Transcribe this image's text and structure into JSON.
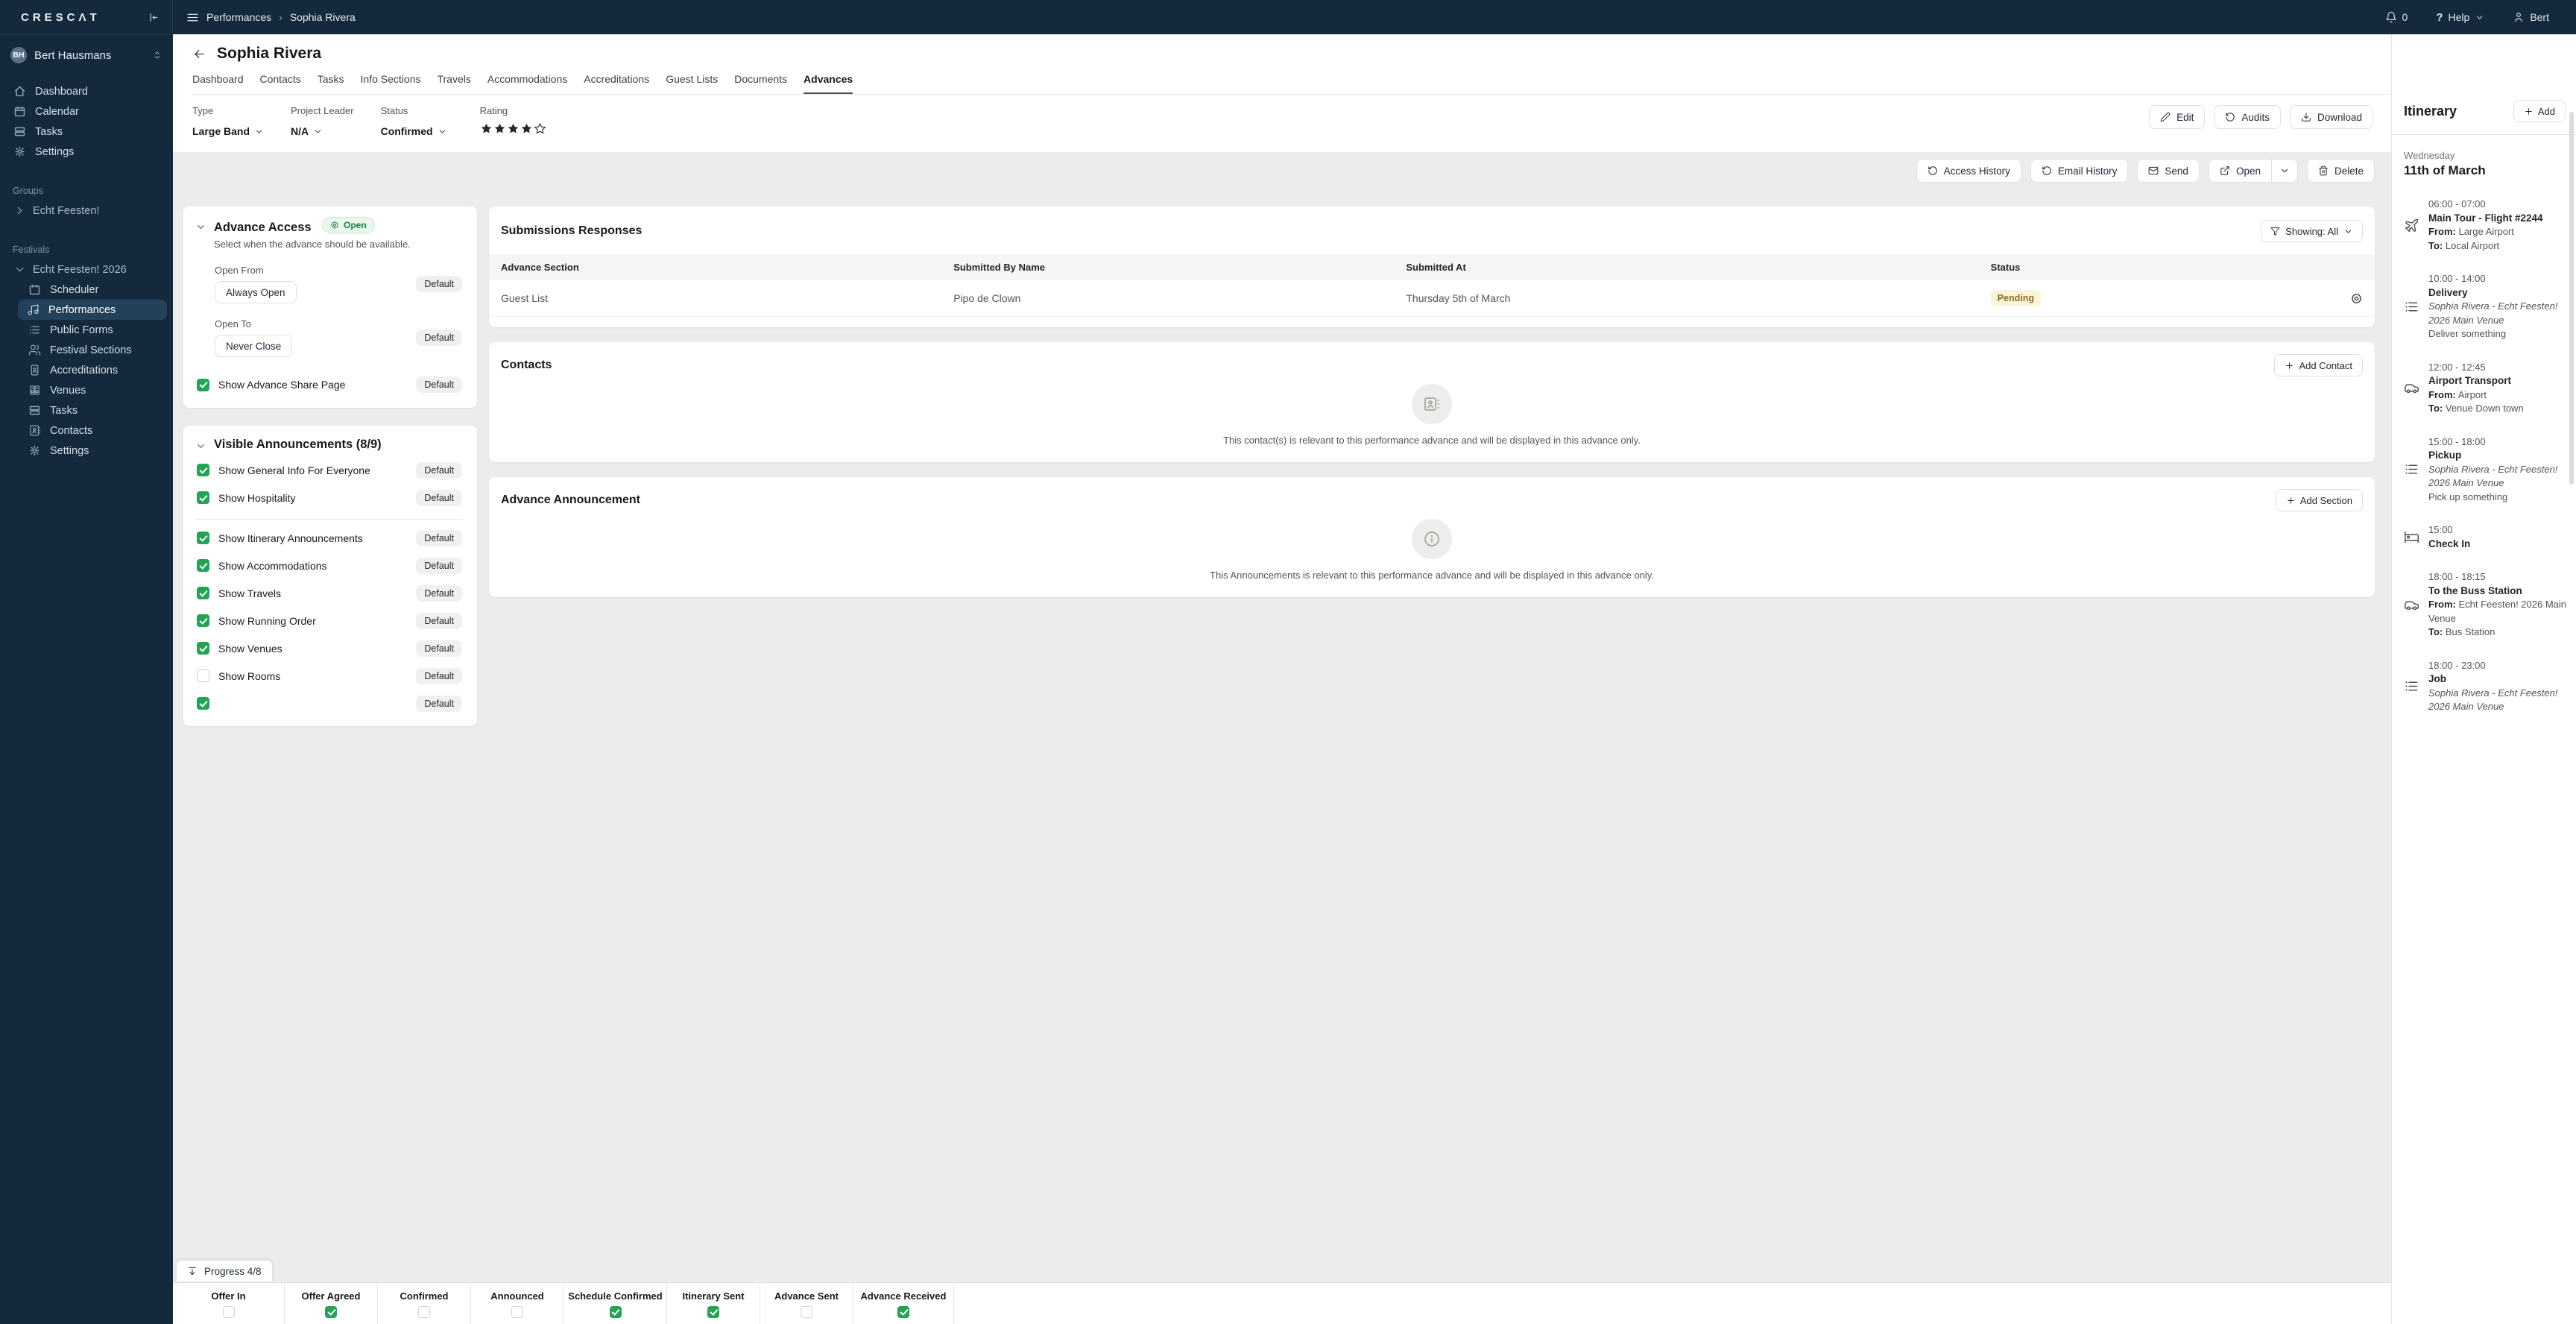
{
  "topbar": {
    "logo": "CRESCΛT",
    "breadcrumb": {
      "section": "Performances",
      "current": "Sophia Rivera"
    },
    "notifications_count": "0",
    "help_label": "Help",
    "help_glyph": "?",
    "user_label": "Bert"
  },
  "sidebar": {
    "user": {
      "initials": "BH",
      "name": "Bert Hausmans"
    },
    "main_items": [
      "Dashboard",
      "Calendar",
      "Tasks",
      "Settings"
    ],
    "groups_label": "Groups",
    "group_item": "Echt Feesten!",
    "festivals_label": "Festivals",
    "festival_item": "Echt Feesten! 2026",
    "festival_children": [
      "Scheduler",
      "Performances",
      "Public Forms",
      "Festival Sections",
      "Accreditations",
      "Venues",
      "Tasks",
      "Contacts",
      "Settings"
    ],
    "active_child": "Performances"
  },
  "header": {
    "title": "Sophia Rivera",
    "tabs": [
      "Dashboard",
      "Contacts",
      "Tasks",
      "Info Sections",
      "Travels",
      "Accommodations",
      "Accreditations",
      "Guest Lists",
      "Documents",
      "Advances"
    ],
    "active_tab": "Advances"
  },
  "meta": {
    "type_label": "Type",
    "type_value": "Large Band",
    "project_leader_label": "Project Leader",
    "project_leader_value": "N/A",
    "status_label": "Status",
    "status_value": "Confirmed",
    "rating_label": "Rating",
    "rating": 4,
    "rating_max": 5
  },
  "header_buttons": {
    "edit": "Edit",
    "audits": "Audits",
    "download": "Download"
  },
  "action_buttons": {
    "access_history": "Access History",
    "email_history": "Email History",
    "send": "Send",
    "open": "Open",
    "delete": "Delete"
  },
  "advance_access": {
    "title": "Advance Access",
    "badge": "Open",
    "description": "Select when the advance should be available.",
    "open_from_label": "Open From",
    "open_from_value": "Always Open",
    "open_to_label": "Open To",
    "open_to_value": "Never Close",
    "share_label": "Show Advance Share Page",
    "default_label": "Default"
  },
  "visible_announcements": {
    "title": "Visible Announcements (8/9)",
    "default_label": "Default",
    "items": [
      {
        "label": "Show General Info For Everyone",
        "checked": true
      },
      {
        "label": "Show Hospitality",
        "checked": true
      },
      {
        "label": "Show Itinerary Announcements",
        "checked": true
      },
      {
        "label": "Show Accommodations",
        "checked": true
      },
      {
        "label": "Show Travels",
        "checked": true
      },
      {
        "label": "Show Running Order",
        "checked": true
      },
      {
        "label": "Show Venues",
        "checked": true
      },
      {
        "label": "Show Rooms",
        "checked": false
      },
      {
        "label": "",
        "checked": true
      }
    ]
  },
  "progress_button": "Progress 4/8",
  "submissions": {
    "title": "Submissions Responses",
    "filter_label": "Showing: All",
    "columns": [
      "Advance Section",
      "Submitted By Name",
      "Submitted At",
      "Status"
    ],
    "rows": [
      {
        "section": "Guest List",
        "submitted_by": "Pipo de Clown",
        "submitted_at": "Thursday 5th of March",
        "status": "Pending"
      }
    ]
  },
  "contacts_card": {
    "title": "Contacts",
    "add_label": "Add Contact",
    "empty_text": "This contact(s) is relevant to this performance advance and will be displayed in this advance only."
  },
  "announcement_card": {
    "title": "Advance Announcement",
    "add_label": "Add Section",
    "empty_text": "This Announcements is relevant to this performance advance and will be displayed in this advance only."
  },
  "itinerary": {
    "title": "Itinerary",
    "add_label": "Add",
    "day_label": "Wednesday",
    "date_label": "11th of March",
    "from_label": "From:",
    "to_label": "To:",
    "items": [
      {
        "time": "06:00 - 07:00",
        "title": "Main Tour - Flight #2244",
        "icon": "plane",
        "from": "Large Airport",
        "to": "Local Airport"
      },
      {
        "time": "10:00 - 14:00",
        "title": "Delivery",
        "icon": "list",
        "venue": "Sophia Rivera - Echt Feesten! 2026 Main Venue",
        "note": "Deliver something"
      },
      {
        "time": "12:00 - 12:45",
        "title": "Airport Transport",
        "icon": "car",
        "from": "Airport",
        "to": "Venue Down town"
      },
      {
        "time": "15:00 - 18:00",
        "title": "Pickup",
        "icon": "list",
        "venue": "Sophia Rivera - Echt Feesten! 2026 Main Venue",
        "note": "Pick up something"
      },
      {
        "time": "15:00",
        "title": "Check In",
        "icon": "bed"
      },
      {
        "time": "18:00 - 18:15",
        "title": "To the Buss Station",
        "icon": "car",
        "from": "Echt Feesten! 2026 Main Venue",
        "to": "Bus Station"
      },
      {
        "time": "18:00 - 23:00",
        "title": "Job",
        "icon": "list",
        "venue": "Sophia Rivera - Echt Feesten! 2026 Main Venue"
      }
    ]
  },
  "status_bar": {
    "items": [
      {
        "label": "Offer In",
        "checked": false
      },
      {
        "label": "Offer Agreed",
        "checked": true
      },
      {
        "label": "Confirmed",
        "checked": false
      },
      {
        "label": "Announced",
        "checked": false
      },
      {
        "label": "Schedule Confirmed",
        "checked": true
      },
      {
        "label": "Itinerary Sent",
        "checked": true
      },
      {
        "label": "Advance Sent",
        "checked": false
      },
      {
        "label": "Advance Received",
        "checked": true
      }
    ]
  },
  "colors": {
    "sidebar_bg": "#14293C",
    "accent_green": "#23A455",
    "open_badge_bg": "#EAF7EE",
    "open_badge_text": "#1A7F43",
    "pending_bg": "#FBF3DB",
    "pending_text": "#8A6D1D"
  }
}
